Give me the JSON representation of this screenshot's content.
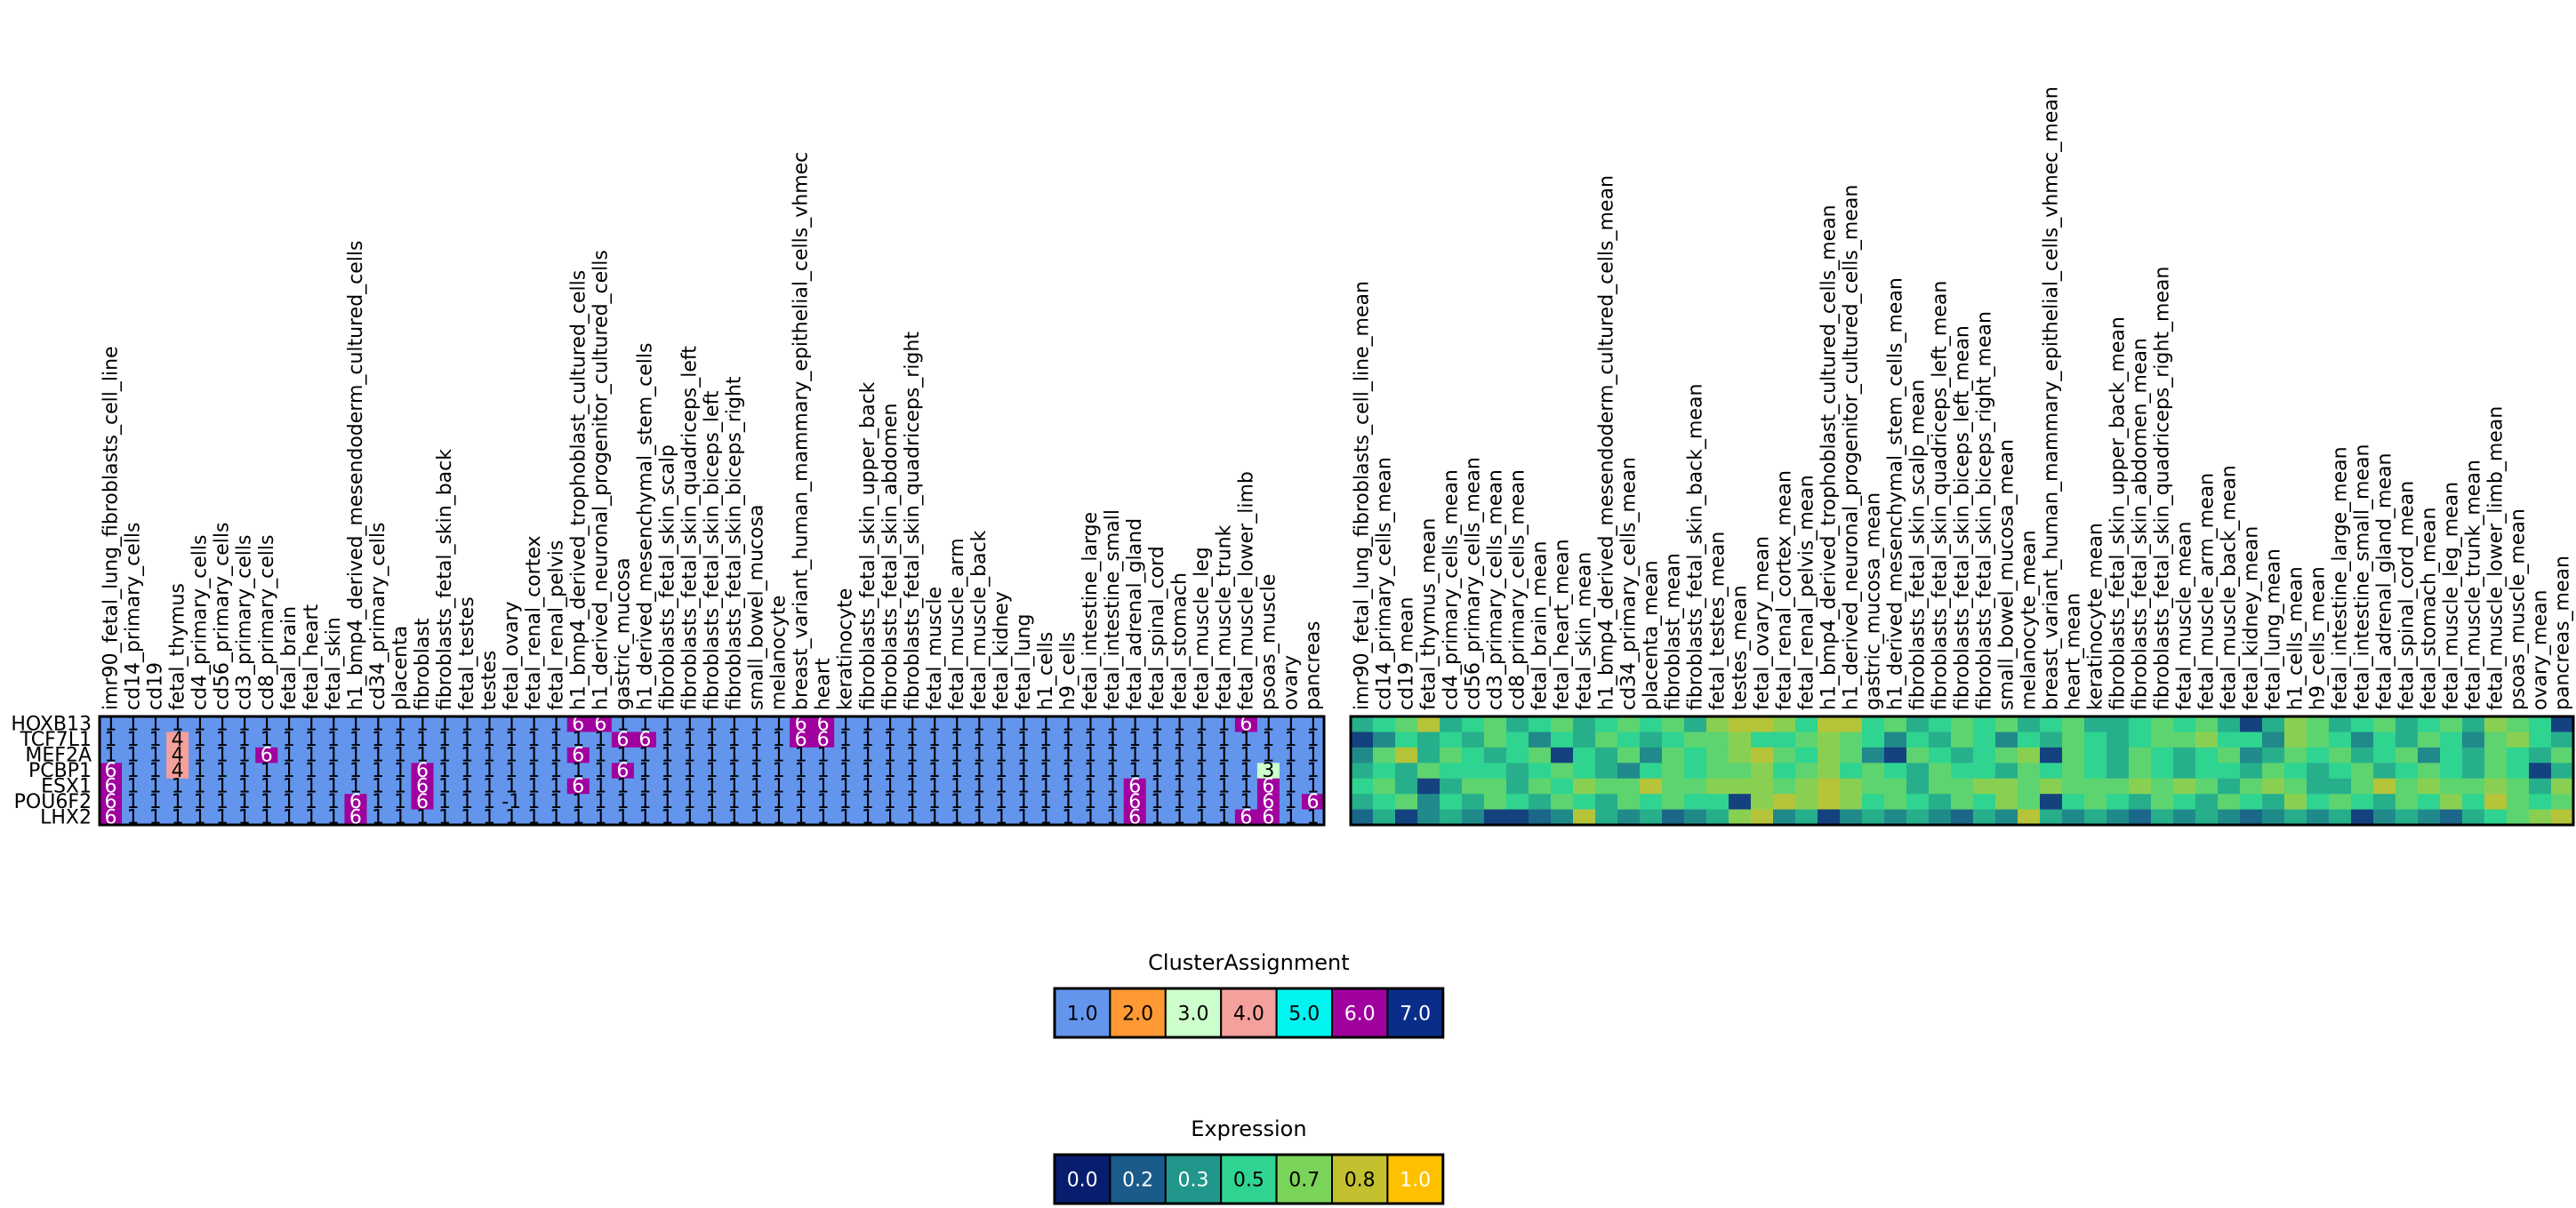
{
  "chart_data": [
    {
      "type": "heatmap",
      "title": "",
      "rows": [
        "HOXB13",
        "TCF7L1",
        "MEF2A",
        "PCBP1",
        "ESX1",
        "POU6F2",
        "LHX2"
      ],
      "columns": [
        "imr90_fetal_lung_fibroblasts_cell_line",
        "cd14_primary_cells",
        "cd19",
        "fetal_thymus",
        "cd4_primary_cells",
        "cd56_primary_cells",
        "cd3_primary_cells",
        "cd8_primary_cells",
        "fetal_brain",
        "fetal_heart",
        "fetal_skin",
        "h1_bmp4_derived_mesendoderm_cultured_cells",
        "cd34_primary_cells",
        "placenta",
        "fibroblast",
        "fibroblasts_fetal_skin_back",
        "fetal_testes",
        "testes",
        "fetal_ovary",
        "fetal_renal_cortex",
        "fetal_renal_pelvis",
        "h1_bmp4_derived_trophoblast_cultured_cells",
        "h1_derived_neuronal_progenitor_cultured_cells",
        "gastric_mucosa",
        "h1_derived_mesenchymal_stem_cells",
        "fibroblasts_fetal_skin_scalp",
        "fibroblasts_fetal_skin_quadriceps_left",
        "fibroblasts_fetal_skin_biceps_left",
        "fibroblasts_fetal_skin_biceps_right",
        "small_bowel_mucosa",
        "melanocyte",
        "breast_variant_human_mammary_epithelial_cells_vhmec",
        "heart",
        "keratinocyte",
        "fibroblasts_fetal_skin_upper_back",
        "fibroblasts_fetal_skin_abdomen",
        "fibroblasts_fetal_skin_quadriceps_right",
        "fetal_muscle",
        "fetal_muscle_arm",
        "fetal_muscle_back",
        "fetal_kidney",
        "fetal_lung",
        "h1_cells",
        "h9_cells",
        "fetal_intestine_large",
        "fetal_intestine_small",
        "fetal_adrenal_gland",
        "fetal_spinal_cord",
        "fetal_stomach",
        "fetal_muscle_leg",
        "fetal_muscle_trunk",
        "fetal_muscle_lower_limb",
        "psoas_muscle",
        "ovary",
        "pancreas"
      ],
      "values": [
        [
          1,
          1,
          1,
          1,
          1,
          1,
          1,
          1,
          1,
          1,
          1,
          1,
          1,
          1,
          1,
          1,
          1,
          1,
          1,
          1,
          1,
          6,
          6,
          1,
          1,
          1,
          1,
          1,
          1,
          1,
          1,
          6,
          6,
          1,
          1,
          1,
          1,
          1,
          1,
          1,
          1,
          1,
          1,
          1,
          1,
          1,
          1,
          1,
          1,
          1,
          1,
          6,
          1,
          1,
          1
        ],
        [
          1,
          1,
          1,
          4,
          1,
          1,
          1,
          1,
          1,
          1,
          1,
          1,
          1,
          1,
          1,
          1,
          1,
          1,
          1,
          1,
          1,
          1,
          1,
          6,
          6,
          1,
          1,
          1,
          1,
          1,
          1,
          6,
          6,
          1,
          1,
          1,
          1,
          1,
          1,
          1,
          1,
          1,
          1,
          1,
          1,
          1,
          1,
          1,
          1,
          1,
          1,
          1,
          1,
          1,
          1
        ],
        [
          1,
          1,
          1,
          4,
          1,
          1,
          1,
          6,
          1,
          1,
          1,
          1,
          1,
          1,
          1,
          1,
          1,
          1,
          1,
          1,
          1,
          6,
          1,
          1,
          1,
          1,
          1,
          1,
          1,
          1,
          1,
          1,
          1,
          1,
          1,
          1,
          1,
          1,
          1,
          1,
          1,
          1,
          1,
          1,
          1,
          1,
          1,
          1,
          1,
          1,
          1,
          1,
          1,
          1,
          1
        ],
        [
          6,
          1,
          1,
          4,
          1,
          1,
          1,
          1,
          1,
          1,
          1,
          1,
          1,
          1,
          6,
          1,
          1,
          1,
          1,
          1,
          1,
          1,
          1,
          6,
          1,
          1,
          1,
          1,
          1,
          1,
          1,
          1,
          1,
          1,
          1,
          1,
          1,
          1,
          1,
          1,
          1,
          1,
          1,
          1,
          1,
          1,
          1,
          1,
          1,
          1,
          1,
          1,
          3,
          1,
          1
        ],
        [
          6,
          1,
          1,
          1,
          1,
          1,
          1,
          1,
          1,
          1,
          1,
          1,
          1,
          1,
          6,
          1,
          1,
          1,
          1,
          1,
          1,
          6,
          1,
          1,
          1,
          1,
          1,
          1,
          1,
          1,
          1,
          1,
          1,
          1,
          1,
          1,
          1,
          1,
          1,
          1,
          1,
          1,
          1,
          1,
          1,
          1,
          6,
          1,
          1,
          1,
          1,
          1,
          6,
          1,
          1
        ],
        [
          6,
          1,
          1,
          1,
          1,
          1,
          1,
          1,
          1,
          1,
          1,
          6,
          1,
          1,
          6,
          1,
          1,
          1,
          -1,
          1,
          1,
          1,
          1,
          1,
          1,
          1,
          1,
          1,
          1,
          1,
          1,
          1,
          1,
          1,
          1,
          1,
          1,
          1,
          1,
          1,
          1,
          1,
          1,
          1,
          1,
          1,
          6,
          1,
          1,
          1,
          1,
          1,
          6,
          1,
          6
        ],
        [
          6,
          1,
          1,
          1,
          1,
          1,
          1,
          1,
          1,
          1,
          1,
          6,
          1,
          1,
          1,
          1,
          1,
          1,
          1,
          1,
          1,
          1,
          1,
          1,
          1,
          1,
          1,
          1,
          1,
          1,
          1,
          1,
          1,
          1,
          1,
          1,
          1,
          1,
          1,
          1,
          1,
          1,
          1,
          1,
          1,
          1,
          6,
          1,
          1,
          1,
          1,
          6,
          6,
          1,
          1
        ]
      ],
      "colorbar": {
        "title": "ClusterAssignment",
        "labels": [
          "1.0",
          "2.0",
          "3.0",
          "4.0",
          "5.0",
          "6.0",
          "7.0"
        ],
        "colors": [
          "#6495ed",
          "#ff9933",
          "#ccffcc",
          "#f4a09c",
          "#00f5f0",
          "#a0009e",
          "#0a2d8a"
        ]
      }
    },
    {
      "type": "heatmap",
      "title": "",
      "rows": [
        "HOXB13",
        "TCF7L1",
        "MEF2A",
        "PCBP1",
        "ESX1",
        "POU6F2",
        "LHX2"
      ],
      "columns": [
        "imr90_fetal_lung_fibroblasts_cell_line_mean",
        "cd14_primary_cells_mean",
        "cd19_mean",
        "fetal_thymus_mean",
        "cd4_primary_cells_mean",
        "cd56_primary_cells_mean",
        "cd3_primary_cells_mean",
        "cd8_primary_cells_mean",
        "fetal_brain_mean",
        "fetal_heart_mean",
        "fetal_skin_mean",
        "h1_bmp4_derived_mesendoderm_cultured_cells_mean",
        "cd34_primary_cells_mean",
        "placenta_mean",
        "fibroblast_mean",
        "fibroblasts_fetal_skin_back_mean",
        "fetal_testes_mean",
        "testes_mean",
        "fetal_ovary_mean",
        "fetal_renal_cortex_mean",
        "fetal_renal_pelvis_mean",
        "h1_bmp4_derived_trophoblast_cultured_cells_mean",
        "h1_derived_neuronal_progenitor_cultured_cells_mean",
        "gastric_mucosa_mean",
        "h1_derived_mesenchymal_stem_cells_mean",
        "fibroblasts_fetal_skin_scalp_mean",
        "fibroblasts_fetal_skin_quadriceps_left_mean",
        "fibroblasts_fetal_skin_biceps_left_mean",
        "fibroblasts_fetal_skin_biceps_right_mean",
        "small_bowel_mucosa_mean",
        "melanocyte_mean",
        "breast_variant_human_mammary_epithelial_cells_vhmec_mean",
        "heart_mean",
        "keratinocyte_mean",
        "fibroblasts_fetal_skin_upper_back_mean",
        "fibroblasts_fetal_skin_abdomen_mean",
        "fibroblasts_fetal_skin_quadriceps_right_mean",
        "fetal_muscle_mean",
        "fetal_muscle_arm_mean",
        "fetal_muscle_back_mean",
        "fetal_kidney_mean",
        "fetal_lung_mean",
        "h1_cells_mean",
        "h9_cells_mean",
        "fetal_intestine_large_mean",
        "fetal_intestine_small_mean",
        "fetal_adrenal_gland_mean",
        "fetal_spinal_cord_mean",
        "fetal_stomach_mean",
        "fetal_muscle_leg_mean",
        "fetal_muscle_trunk_mean",
        "fetal_muscle_lower_limb_mean",
        "psoas_muscle_mean",
        "ovary_mean",
        "pancreas_mean"
      ],
      "values": [
        [
          0.4,
          0.5,
          0.6,
          0.8,
          0.4,
          0.5,
          0.6,
          0.4,
          0.5,
          0.6,
          0.4,
          0.5,
          0.6,
          0.5,
          0.6,
          0.4,
          0.7,
          0.8,
          0.8,
          0.7,
          0.5,
          0.8,
          0.8,
          0.5,
          0.6,
          0.4,
          0.5,
          0.6,
          0.5,
          0.6,
          0.4,
          0.5,
          0.6,
          0.4,
          0.4,
          0.5,
          0.6,
          0.5,
          0.6,
          0.4,
          0.1,
          0.4,
          0.7,
          0.6,
          0.4,
          0.5,
          0.6,
          0.4,
          0.5,
          0.6,
          0.4,
          0.7,
          0.6,
          0.5,
          0.1
        ],
        [
          0.1,
          0.3,
          0.5,
          0.4,
          0.5,
          0.4,
          0.6,
          0.5,
          0.3,
          0.5,
          0.4,
          0.6,
          0.5,
          0.4,
          0.5,
          0.6,
          0.6,
          0.7,
          0.5,
          0.5,
          0.6,
          0.7,
          0.6,
          0.5,
          0.3,
          0.5,
          0.4,
          0.6,
          0.5,
          0.3,
          0.5,
          0.4,
          0.6,
          0.5,
          0.4,
          0.5,
          0.6,
          0.6,
          0.7,
          0.5,
          0.5,
          0.3,
          0.7,
          0.6,
          0.5,
          0.3,
          0.5,
          0.4,
          0.6,
          0.5,
          0.3,
          0.6,
          0.7,
          0.5,
          0.4
        ],
        [
          0.3,
          0.6,
          0.8,
          0.4,
          0.6,
          0.5,
          0.4,
          0.5,
          0.6,
          0.1,
          0.5,
          0.4,
          0.6,
          0.3,
          0.6,
          0.5,
          0.6,
          0.7,
          0.8,
          0.6,
          0.5,
          0.7,
          0.6,
          0.3,
          0.1,
          0.6,
          0.5,
          0.4,
          0.5,
          0.6,
          0.7,
          0.1,
          0.6,
          0.5,
          0.4,
          0.6,
          0.5,
          0.4,
          0.5,
          0.6,
          0.3,
          0.4,
          0.6,
          0.5,
          0.6,
          0.4,
          0.5,
          0.6,
          0.3,
          0.5,
          0.4,
          0.6,
          0.5,
          0.4,
          0.6
        ],
        [
          0.4,
          0.5,
          0.4,
          0.6,
          0.5,
          0.5,
          0.5,
          0.4,
          0.5,
          0.6,
          0.5,
          0.4,
          0.3,
          0.5,
          0.6,
          0.5,
          0.6,
          0.6,
          0.7,
          0.5,
          0.6,
          0.7,
          0.5,
          0.6,
          0.5,
          0.4,
          0.6,
          0.5,
          0.5,
          0.4,
          0.6,
          0.5,
          0.6,
          0.5,
          0.4,
          0.6,
          0.5,
          0.4,
          0.5,
          0.5,
          0.4,
          0.6,
          0.5,
          0.4,
          0.5,
          0.6,
          0.4,
          0.5,
          0.6,
          0.5,
          0.4,
          0.6,
          0.5,
          0.1,
          0.4
        ],
        [
          0.5,
          0.6,
          0.4,
          0.1,
          0.4,
          0.6,
          0.6,
          0.4,
          0.6,
          0.5,
          0.7,
          0.6,
          0.6,
          0.8,
          0.6,
          0.6,
          0.7,
          0.7,
          0.7,
          0.6,
          0.7,
          0.8,
          0.7,
          0.6,
          0.6,
          0.4,
          0.6,
          0.6,
          0.7,
          0.7,
          0.6,
          0.7,
          0.6,
          0.6,
          0.6,
          0.7,
          0.6,
          0.7,
          0.6,
          0.4,
          0.6,
          0.7,
          0.6,
          0.4,
          0.4,
          0.6,
          0.8,
          0.6,
          0.7,
          0.6,
          0.6,
          0.7,
          0.6,
          0.4,
          0.7
        ],
        [
          0.4,
          0.5,
          0.6,
          0.3,
          0.5,
          0.4,
          0.6,
          0.5,
          0.4,
          0.6,
          0.5,
          0.4,
          0.6,
          0.5,
          0.6,
          0.5,
          0.5,
          0.1,
          0.7,
          0.8,
          0.7,
          0.8,
          0.7,
          0.5,
          0.6,
          0.5,
          0.4,
          0.6,
          0.5,
          0.7,
          0.6,
          0.1,
          0.5,
          0.6,
          0.5,
          0.4,
          0.6,
          0.5,
          0.4,
          0.6,
          0.5,
          0.4,
          0.7,
          0.5,
          0.6,
          0.5,
          0.4,
          0.6,
          0.5,
          0.7,
          0.5,
          0.8,
          0.6,
          0.5,
          0.6
        ],
        [
          0.2,
          0.4,
          0.1,
          0.3,
          0.4,
          0.3,
          0.1,
          0.1,
          0.2,
          0.3,
          0.8,
          0.4,
          0.3,
          0.4,
          0.2,
          0.3,
          0.4,
          0.7,
          0.8,
          0.3,
          0.4,
          0.1,
          0.3,
          0.4,
          0.3,
          0.4,
          0.3,
          0.2,
          0.4,
          0.3,
          0.8,
          0.4,
          0.3,
          0.4,
          0.3,
          0.2,
          0.4,
          0.3,
          0.4,
          0.3,
          0.2,
          0.3,
          0.4,
          0.3,
          0.4,
          0.1,
          0.3,
          0.4,
          0.3,
          0.2,
          0.4,
          0.5,
          0.6,
          0.7,
          0.8
        ]
      ],
      "colorbar": {
        "title": "Expression",
        "labels": [
          "0.0",
          "0.2",
          "0.3",
          "0.5",
          "0.7",
          "0.8",
          "1.0"
        ],
        "colors": [
          "#081d6e",
          "#1a5b8a",
          "#21968a",
          "#2fd490",
          "#7bd45a",
          "#c3c030",
          "#ffc000"
        ]
      }
    }
  ]
}
